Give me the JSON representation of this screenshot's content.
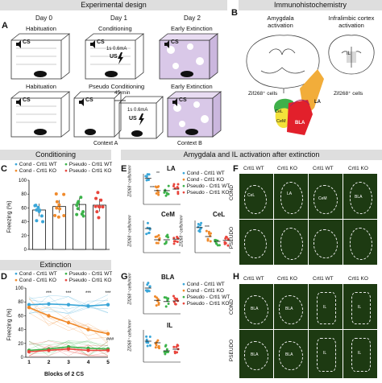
{
  "headers": {
    "exp_design": "Experimental design",
    "immuno": "Immunohistochemistry",
    "conditioning": "Conditioning",
    "amygdala_il": "Amygdala and IL activation after extinction",
    "extinction": "Extinction"
  },
  "panel_letters": {
    "a": "A",
    "b": "B",
    "c": "C",
    "d": "D",
    "e": "E",
    "f": "F",
    "g": "G",
    "h": "H"
  },
  "panel_a": {
    "days": [
      "Day 0",
      "Day 1",
      "Day 2"
    ],
    "row1": [
      "Habituation",
      "Conditioning",
      "Early Extinction"
    ],
    "row2": [
      "Habituation",
      "Pseudo Conditioning",
      "Early Extinction"
    ],
    "cs": "CS",
    "us": "US",
    "shock1": "1s 0.6mA",
    "delay": "45 min",
    "shock2": "1s 0.6mA",
    "context_a": "Context A",
    "context_b": "Context B"
  },
  "panel_b": {
    "amygdala_title": "Amygdala activation",
    "il_title": "Infralimbic cortex activation",
    "il_label": "IL",
    "zif_left": "Zif268⁺ cells",
    "zif_right": "Zif268⁺ cells",
    "regions": [
      "LA",
      "CeL",
      "CeM",
      "BLA"
    ]
  },
  "legend": [
    {
      "label": "Cond - Crtl1 WT",
      "color": "#3aa6d8"
    },
    {
      "label": "Cond - Crtl1 KO",
      "color": "#f08a2b"
    },
    {
      "label": "Pseudo - Crtl1 WT",
      "color": "#3cb34a"
    },
    {
      "label": "Pseudo - Crtl1 KO",
      "color": "#e8453c"
    }
  ],
  "panel_c": {
    "ylabel": "Freezing (%)",
    "yticks": [
      "0",
      "20",
      "40",
      "60",
      "80",
      "100"
    ]
  },
  "panel_d": {
    "ylabel": "Freezing (%)",
    "xlabel": "Blocks of 2 CS",
    "yticks": [
      "0",
      "20",
      "40",
      "60",
      "80",
      "100"
    ],
    "xticks": [
      "1",
      "2",
      "3",
      "4",
      "5"
    ],
    "stars": [
      "***",
      "***",
      "***",
      "***"
    ],
    "hash": "###"
  },
  "panels_eg": {
    "ylabel": "Zif268⁺ cells/mm²",
    "titles": {
      "la": "LA",
      "cem": "CeM",
      "cel": "CeL",
      "bla": "BLA",
      "il": "IL"
    },
    "sig": [
      "***",
      "**",
      "***"
    ]
  },
  "micro": {
    "cols": [
      "Crtl1 WT",
      "Crtl1 KO",
      "Crtl1 WT",
      "Crtl1 KO"
    ],
    "rows": [
      "COND",
      "PSEUDO"
    ],
    "f_labels": [
      "CeL",
      "LA",
      "CeM",
      "BLA"
    ],
    "h_labels": [
      "BLA",
      "IL"
    ]
  },
  "chart_data": [
    {
      "type": "bar",
      "panel": "C",
      "categories": [
        "Cond - Crtl1 WT",
        "Cond - Crtl1 KO",
        "Pseudo - Crtl1 WT",
        "Pseudo - Crtl1 KO"
      ],
      "values": [
        57,
        62,
        65,
        64
      ],
      "ylabel": "Freezing (%)",
      "ylim": [
        0,
        100
      ],
      "colors": [
        "#3aa6d8",
        "#f08a2b",
        "#3cb34a",
        "#e8453c"
      ]
    },
    {
      "type": "line",
      "panel": "D",
      "x": [
        1,
        2,
        3,
        4,
        5
      ],
      "xlabel": "Blocks of 2 CS",
      "ylabel": "Freezing (%)",
      "ylim": [
        0,
        100
      ],
      "series": [
        {
          "name": "Cond - Crtl1 WT",
          "color": "#3aa6d8",
          "values": [
            76,
            77,
            76,
            74,
            76
          ]
        },
        {
          "name": "Cond - Crtl1 KO",
          "color": "#f08a2b",
          "values": [
            72,
            60,
            50,
            40,
            34
          ]
        },
        {
          "name": "Pseudo - Crtl1 WT",
          "color": "#3cb34a",
          "values": [
            10,
            12,
            15,
            13,
            12
          ]
        },
        {
          "name": "Pseudo - Crtl1 KO",
          "color": "#e8453c",
          "values": [
            8,
            10,
            12,
            10,
            10
          ]
        }
      ]
    },
    {
      "type": "scatter",
      "panel": "E",
      "region": "LA",
      "ylabel": "Zif268⁺ cells/mm²",
      "groups": [
        "Cond - Crtl1 WT",
        "Cond - Crtl1 KO",
        "Pseudo - Crtl1 WT",
        "Pseudo - Crtl1 KO"
      ],
      "means": [
        0.85,
        0.45,
        0.45,
        0.5
      ]
    },
    {
      "type": "scatter",
      "panel": "E",
      "region": "CeM",
      "ylabel": "Zif268⁺ cells/mm²",
      "groups": [
        "Cond - Crtl1 WT",
        "Cond - Crtl1 KO",
        "Pseudo - Crtl1 WT",
        "Pseudo - Crtl1 KO"
      ],
      "means": [
        0.75,
        0.4,
        0.4,
        0.42
      ]
    },
    {
      "type": "scatter",
      "panel": "E",
      "region": "CeL",
      "ylabel": "Zif268⁺ cells/mm²",
      "groups": [
        "Cond - Crtl1 WT",
        "Cond - Crtl1 KO",
        "Pseudo - Crtl1 WT",
        "Pseudo - Crtl1 KO"
      ],
      "means": [
        0.78,
        0.5,
        0.35,
        0.38
      ]
    },
    {
      "type": "scatter",
      "panel": "G",
      "region": "BLA",
      "ylabel": "Zif268⁺ cells/mm²",
      "groups": [
        "Cond - Crtl1 WT",
        "Cond - Crtl1 KO",
        "Pseudo - Crtl1 WT",
        "Pseudo - Crtl1 KO"
      ],
      "means": [
        0.8,
        0.42,
        0.38,
        0.4
      ]
    },
    {
      "type": "scatter",
      "panel": "G",
      "region": "IL",
      "ylabel": "Zif268⁺ cells/mm²",
      "groups": [
        "Cond - Crtl1 WT",
        "Cond - Crtl1 KO",
        "Pseudo - Crtl1 WT",
        "Pseudo - Crtl1 KO"
      ],
      "means": [
        0.65,
        0.6,
        0.35,
        0.4
      ]
    }
  ]
}
